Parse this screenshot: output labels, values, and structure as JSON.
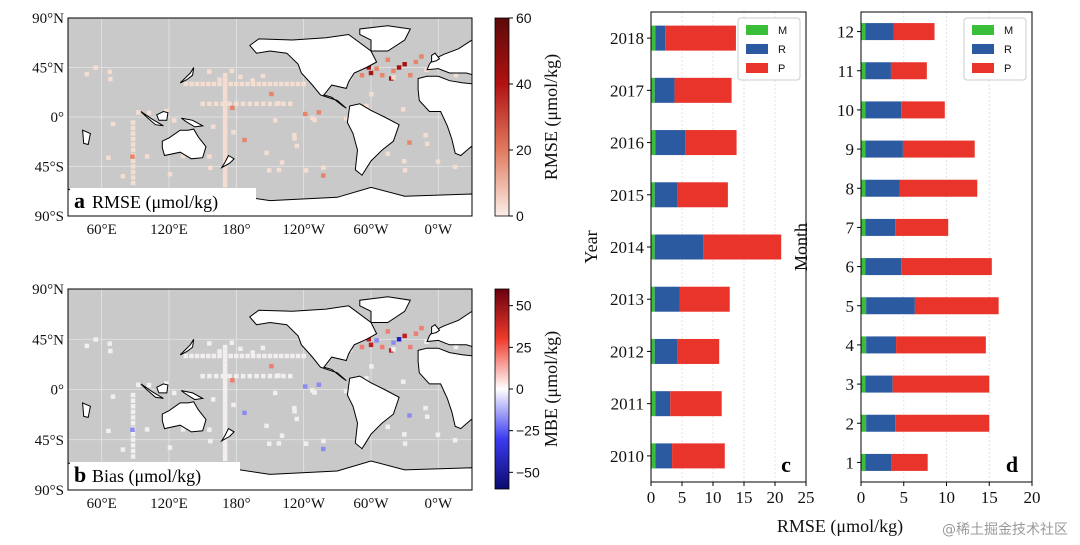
{
  "watermark": "@稀土掘金技术社区",
  "maps": {
    "lon_ticks": [
      "60°E",
      "120°E",
      "180°",
      "120°W",
      "60°W",
      "0°W"
    ],
    "lat_ticks": [
      "90°N",
      "45°N",
      "0°",
      "45°S",
      "90°S"
    ],
    "colors": {
      "ocean": "#c9c9c9",
      "land": "#ffffff",
      "coast": "#000000"
    }
  },
  "chart_data": [
    {
      "panel": "a",
      "type": "heatmap",
      "title": "RMSE (μmol/kg)",
      "colorbar": {
        "label": "RMSE (μmol/kg)",
        "range": [
          0,
          60
        ],
        "ticks": [
          "0",
          "20",
          "40",
          "60"
        ],
        "colors": [
          "#fbeee7",
          "#e07a5f",
          "#b11212",
          "#5c0a0a"
        ]
      }
    },
    {
      "panel": "b",
      "type": "heatmap",
      "title": "Bias (μmol/kg)",
      "colorbar": {
        "label": "MBE (μmol/kg)",
        "range": [
          -60,
          60
        ],
        "ticks": [
          "50",
          "25",
          "0",
          "−25",
          "−50"
        ],
        "colors": [
          "#0b0b6e",
          "#3b3bf0",
          "#ffffff",
          "#ef3b2c",
          "#6b0010"
        ]
      }
    },
    {
      "panel": "c",
      "type": "bar",
      "orientation": "horizontal",
      "stacked": true,
      "ylabel": "Year",
      "xlabel": "RMSE (μmol/kg)",
      "xlim": [
        0,
        25
      ],
      "xticks": [
        "0",
        "5",
        "10",
        "15",
        "20",
        "25"
      ],
      "categories": [
        "2010",
        "2011",
        "2012",
        "2013",
        "2014",
        "2015",
        "2016",
        "2017",
        "2018"
      ],
      "series": [
        {
          "name": "M",
          "color": "#3bbf3b",
          "values": [
            0.7,
            0.7,
            0.6,
            0.6,
            0.6,
            0.6,
            0.7,
            0.6,
            0.7
          ]
        },
        {
          "name": "R",
          "color": "#2c5aa0",
          "values": [
            2.7,
            2.4,
            3.6,
            4.0,
            7.8,
            3.7,
            4.8,
            3.2,
            1.6
          ]
        },
        {
          "name": "P",
          "color": "#e8342a",
          "values": [
            8.5,
            8.3,
            6.8,
            8.1,
            12.6,
            8.1,
            8.3,
            9.2,
            11.4
          ]
        }
      ],
      "legend": "top-right"
    },
    {
      "panel": "d",
      "type": "bar",
      "orientation": "horizontal",
      "stacked": true,
      "ylabel": "Month",
      "xlabel": "",
      "xlim": [
        0,
        20
      ],
      "xticks": [
        "0",
        "5",
        "10",
        "15",
        "20"
      ],
      "categories": [
        "1",
        "2",
        "3",
        "4",
        "5",
        "6",
        "7",
        "8",
        "9",
        "10",
        "11",
        "12"
      ],
      "series": [
        {
          "name": "M",
          "color": "#3bbf3b",
          "values": [
            0.5,
            0.6,
            0.5,
            0.6,
            0.6,
            0.5,
            0.5,
            0.5,
            0.5,
            0.5,
            0.5,
            0.5
          ]
        },
        {
          "name": "R",
          "color": "#2c5aa0",
          "values": [
            3.1,
            3.4,
            3.2,
            3.5,
            5.7,
            4.2,
            3.5,
            4.0,
            4.4,
            4.2,
            3.0,
            3.3
          ]
        },
        {
          "name": "P",
          "color": "#e8342a",
          "values": [
            4.2,
            11.0,
            11.3,
            10.5,
            9.8,
            10.6,
            6.2,
            9.1,
            8.4,
            5.1,
            4.2,
            4.8
          ]
        }
      ],
      "legend": "top-right"
    }
  ]
}
